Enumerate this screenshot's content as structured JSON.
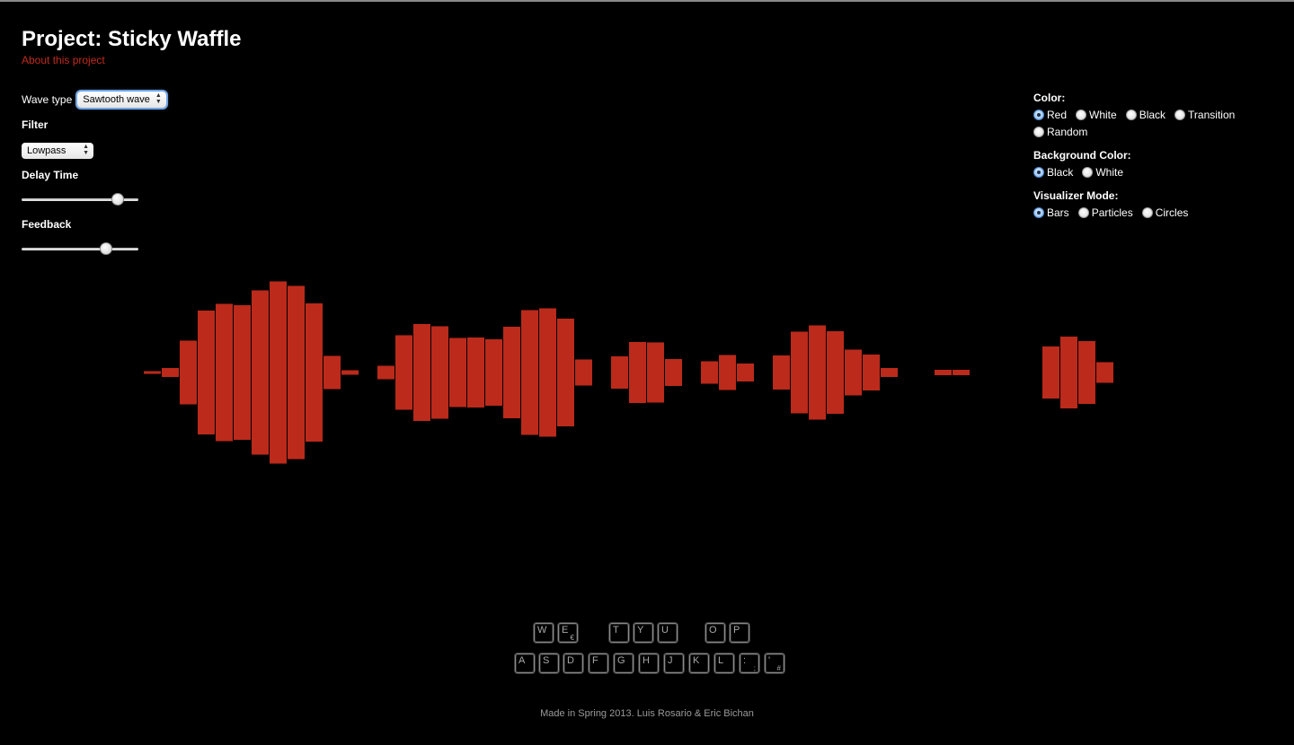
{
  "header": {
    "title": "Project: Sticky Waffle",
    "about_link": "About this project"
  },
  "left_controls": {
    "wave_type_label": "Wave type",
    "wave_type_value": "Sawtooth wave",
    "filter_label": "Filter",
    "filter_value": "Lowpass",
    "delay_label": "Delay Time",
    "delay_value": 0.86,
    "feedback_label": "Feedback",
    "feedback_value": 0.75
  },
  "right_controls": {
    "color_label": "Color:",
    "color_options": [
      "Red",
      "White",
      "Black",
      "Transition",
      "Random"
    ],
    "color_selected": "Red",
    "bg_label": "Background Color:",
    "bg_options": [
      "Black",
      "White"
    ],
    "bg_selected": "Black",
    "mode_label": "Visualizer Mode:",
    "mode_options": [
      "Bars",
      "Particles",
      "Circles"
    ],
    "mode_selected": "Bars"
  },
  "visualizer": {
    "bar_color": "#bb2a1b",
    "levels": [
      0.02,
      0.1,
      0.71,
      1.38,
      1.53,
      1.5,
      1.83,
      2.03,
      1.93,
      1.54,
      0.37,
      0.05,
      0,
      0.15,
      0.83,
      1.08,
      1.03,
      0.77,
      0.78,
      0.74,
      1.02,
      1.39,
      1.43,
      1.2,
      0.29,
      0,
      0.36,
      0.68,
      0.67,
      0.3,
      0,
      0.25,
      0.39,
      0.2,
      0,
      0.38,
      0.91,
      1.05,
      0.92,
      0.51,
      0.4,
      0.1,
      0,
      0,
      0.06,
      0.06,
      0,
      0,
      0,
      0,
      0.58,
      0.8,
      0.7,
      0.23
    ]
  },
  "keyboard": {
    "top_row": [
      {
        "key": "W",
        "sub": ""
      },
      {
        "key": "E",
        "sub": "€"
      },
      {
        "key": "T",
        "sub": ""
      },
      {
        "key": "Y",
        "sub": ""
      },
      {
        "key": "U",
        "sub": ""
      },
      {
        "key": "O",
        "sub": ""
      },
      {
        "key": "P",
        "sub": ""
      }
    ],
    "bottom_row": [
      {
        "key": "A",
        "sub": ""
      },
      {
        "key": "S",
        "sub": ""
      },
      {
        "key": "D",
        "sub": ""
      },
      {
        "key": "F",
        "sub": ""
      },
      {
        "key": "G",
        "sub": ""
      },
      {
        "key": "H",
        "sub": ""
      },
      {
        "key": "J",
        "sub": ""
      },
      {
        "key": "K",
        "sub": ""
      },
      {
        "key": "L",
        "sub": ""
      },
      {
        "key": ":",
        "sub": ";"
      },
      {
        "key": "'",
        "sub": "#"
      }
    ]
  },
  "footer": {
    "credit": "Made in Spring 2013. Luis Rosario & Eric Bichan"
  }
}
